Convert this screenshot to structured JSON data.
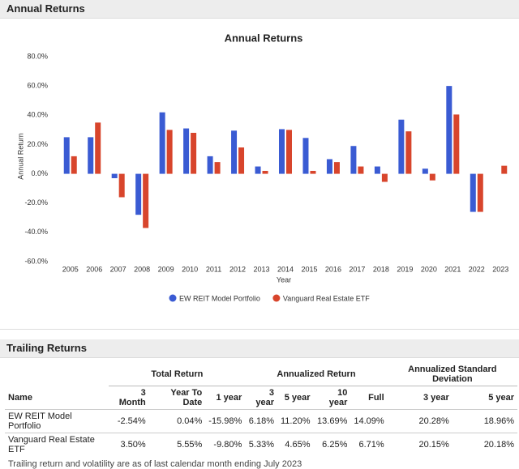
{
  "header": {
    "title": "Annual Returns"
  },
  "chart_data": {
    "type": "bar",
    "title": "Annual Returns",
    "x_label": "Year",
    "y_label": "Annual Return",
    "categories": [
      "2005",
      "2006",
      "2007",
      "2008",
      "2009",
      "2010",
      "2011",
      "2012",
      "2013",
      "2014",
      "2015",
      "2016",
      "2017",
      "2018",
      "2019",
      "2020",
      "2021",
      "2022",
      "2023"
    ],
    "series": [
      {
        "name": "EW REIT Model Portfolio",
        "color": "#3a5bd3",
        "values": [
          25,
          25,
          -3,
          -28,
          42,
          31,
          12,
          29.5,
          5,
          30.5,
          24.5,
          10,
          19,
          5,
          37,
          3.5,
          60,
          -26,
          null
        ]
      },
      {
        "name": "Vanguard Real Estate ETF",
        "color": "#d8452c",
        "values": [
          12,
          35,
          -16,
          -37,
          30,
          28,
          8,
          18,
          2,
          30,
          2,
          8,
          5,
          -5.5,
          29,
          -4.5,
          40.5,
          -26,
          5.5
        ]
      }
    ],
    "ylim": [
      -60,
      80
    ],
    "yticks": [
      {
        "value": -60,
        "label": "-60.0%"
      },
      {
        "value": -40,
        "label": "-40.0%"
      },
      {
        "value": -20,
        "label": "-20.0%"
      },
      {
        "value": 0,
        "label": "0.0%"
      },
      {
        "value": 20,
        "label": "20.0%"
      },
      {
        "value": 40,
        "label": "40.0%"
      },
      {
        "value": 60,
        "label": "60.0%"
      },
      {
        "value": 80,
        "label": "80.0%"
      }
    ],
    "grid": false,
    "legend": "bottom"
  },
  "trailing": {
    "title": "Trailing Returns",
    "name_header": "Name",
    "groups": [
      {
        "label": "Total Return",
        "columns": [
          "3 Month",
          "Year To Date",
          "1 year"
        ]
      },
      {
        "label": "Annualized Return",
        "columns": [
          "3 year",
          "5 year",
          "10 year",
          "Full"
        ]
      },
      {
        "label": "Annualized Standard Deviation",
        "columns": [
          "3 year",
          "5 year"
        ]
      }
    ],
    "rows": [
      {
        "name": "EW REIT Model Portfolio",
        "values": [
          "-2.54%",
          "0.04%",
          "-15.98%",
          "6.18%",
          "11.20%",
          "13.69%",
          "14.09%",
          "20.28%",
          "18.96%"
        ]
      },
      {
        "name": "Vanguard Real Estate ETF",
        "values": [
          "3.50%",
          "5.55%",
          "-9.80%",
          "5.33%",
          "4.65%",
          "6.25%",
          "6.71%",
          "20.15%",
          "20.18%"
        ]
      }
    ],
    "footnote": "Trailing return and volatility are as of last calendar month ending July 2023"
  }
}
